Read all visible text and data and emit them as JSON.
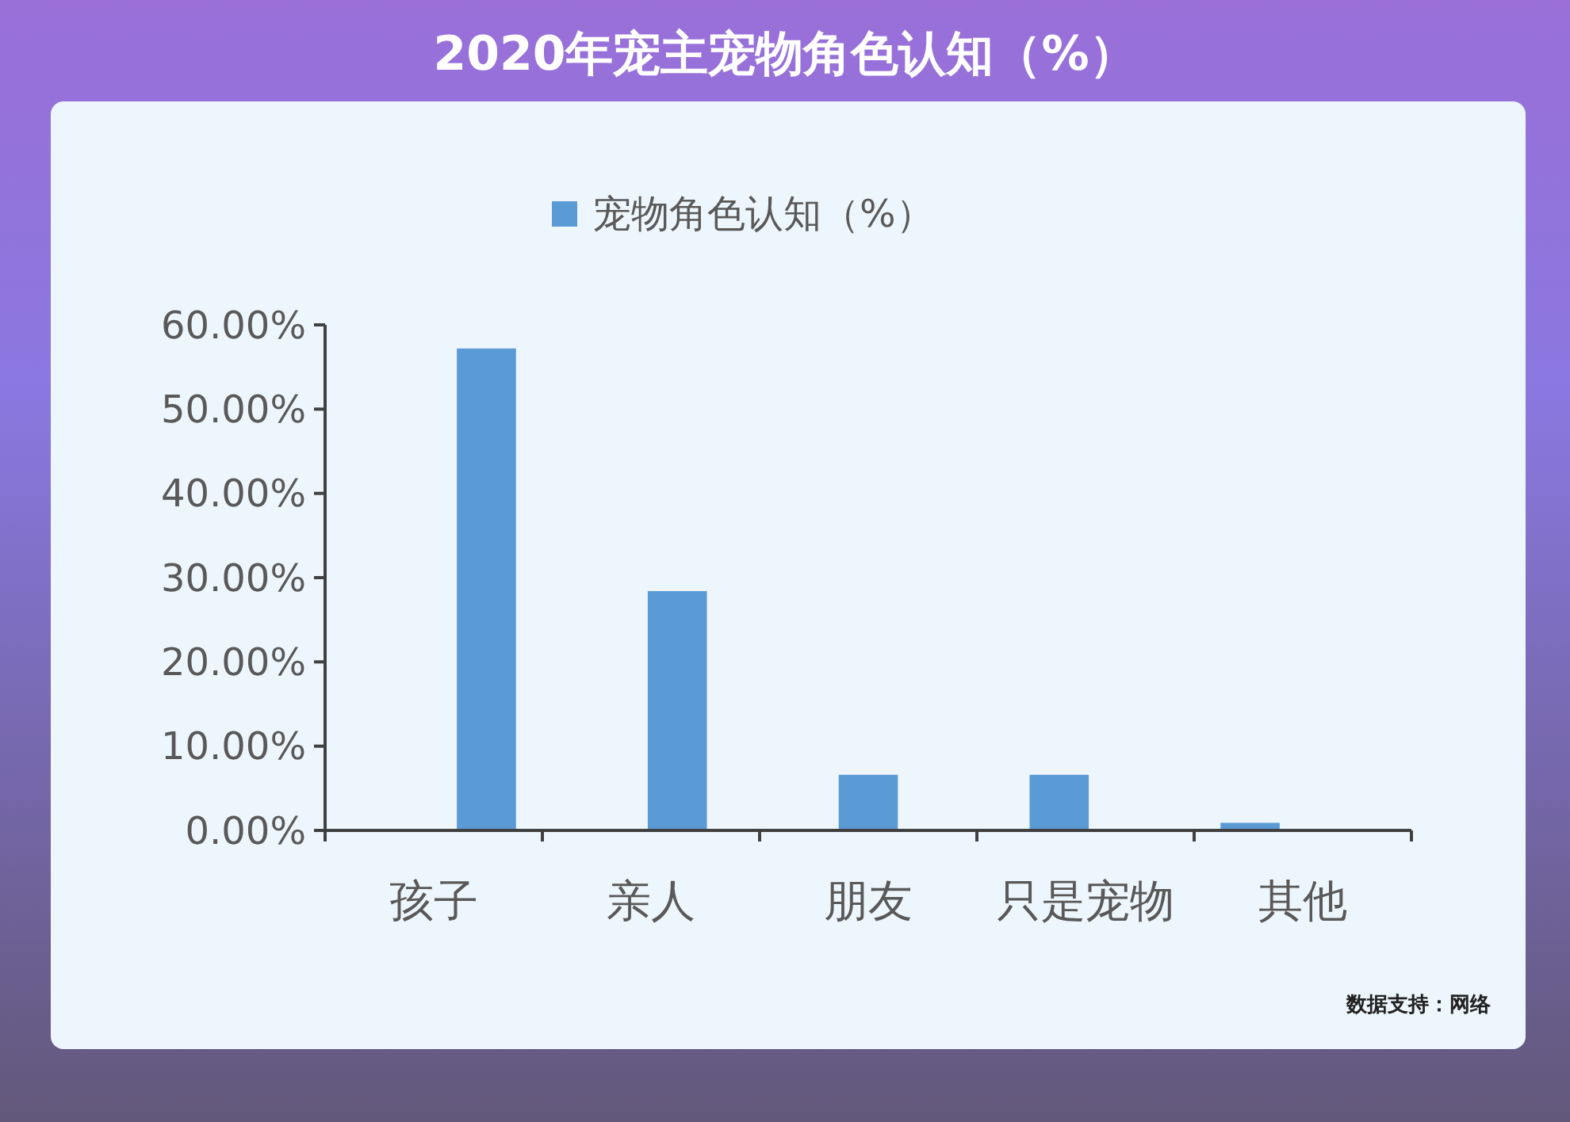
{
  "chart_data": {
    "type": "bar",
    "title": "2020年宠主宠物角色认知（%）",
    "categories": [
      "孩子",
      "亲人",
      "朋友",
      "只是宠物",
      "其他"
    ],
    "series": [
      {
        "name": "宠物角色认知（%）",
        "color": "#5b9bd5",
        "values": [
          57.2,
          28.4,
          6.6,
          6.6,
          0.9
        ]
      }
    ],
    "ylim": [
      0,
      60
    ],
    "yticks": [
      {
        "value": 0,
        "label": "0.00%"
      },
      {
        "value": 10,
        "label": "10.00%"
      },
      {
        "value": 20,
        "label": "20.00%"
      },
      {
        "value": 30,
        "label": "30.00%"
      },
      {
        "value": 40,
        "label": "40.00%"
      },
      {
        "value": 50,
        "label": "50.00%"
      },
      {
        "value": 60,
        "label": "60.00%"
      }
    ],
    "grid": false,
    "legend": "top",
    "annotations": [
      "数据支持：网络"
    ]
  }
}
